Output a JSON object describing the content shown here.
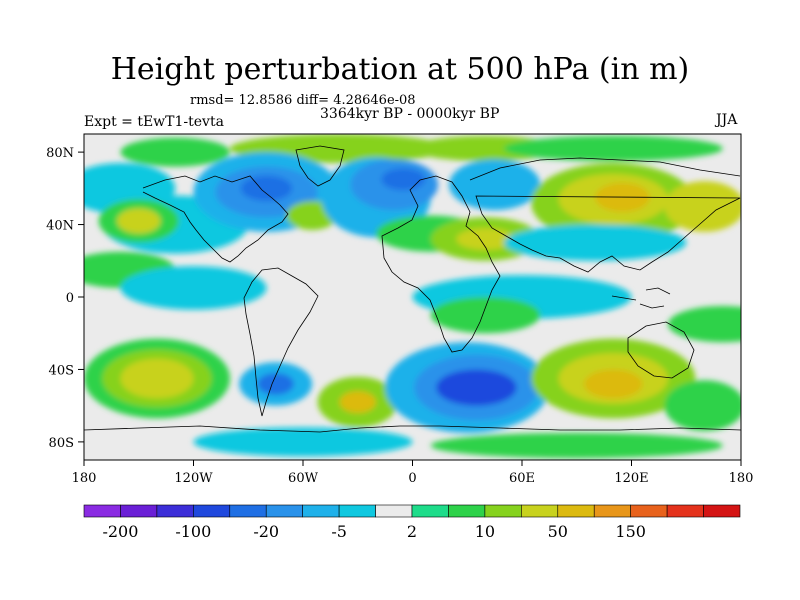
{
  "header": {
    "title": "Height perturbation at 500 hPa (in m)",
    "stats": "rmsd= 12.8586 diff= 4.28646e-08",
    "period": "3364kyr BP - 0000kyr BP",
    "experiment": "Expt = tEwT1-tevta",
    "season": "JJA"
  },
  "axes": {
    "lon_ticks": [
      {
        "value": -180,
        "label": "180"
      },
      {
        "value": -120,
        "label": "120W"
      },
      {
        "value": -60,
        "label": "60W"
      },
      {
        "value": 0,
        "label": "0"
      },
      {
        "value": 60,
        "label": "60E"
      },
      {
        "value": 120,
        "label": "120E"
      },
      {
        "value": 180,
        "label": "180"
      }
    ],
    "lat_ticks": [
      {
        "value": 80,
        "label": "80N"
      },
      {
        "value": 40,
        "label": "40N"
      },
      {
        "value": 0,
        "label": "0"
      },
      {
        "value": -40,
        "label": "40S"
      },
      {
        "value": -80,
        "label": "80S"
      }
    ],
    "lon_range": [
      -180,
      180
    ],
    "lat_range": [
      -90,
      90
    ]
  },
  "colorbar": {
    "colors": [
      "#8a2be2",
      "#6a1fd6",
      "#3c2ed8",
      "#1f48dd",
      "#1f6fe4",
      "#2a92ea",
      "#1fb1ea",
      "#10c8e0",
      "#ebebeb",
      "#1edc8a",
      "#2ed24a",
      "#86d21e",
      "#c8d21e",
      "#dcba10",
      "#e8961a",
      "#e8621c",
      "#e4321c",
      "#d41414"
    ],
    "labels": [
      {
        "text": "-200",
        "boundary": 1
      },
      {
        "text": "-100",
        "boundary": 3
      },
      {
        "text": "-20",
        "boundary": 5
      },
      {
        "text": "-5",
        "boundary": 7
      },
      {
        "text": "2",
        "boundary": 9
      },
      {
        "text": "10",
        "boundary": 11
      },
      {
        "text": "50",
        "boundary": 13
      },
      {
        "text": "150",
        "boundary": 15
      }
    ]
  },
  "field_regions": [
    {
      "lon": -130,
      "lat": 80,
      "rx": 30,
      "ry": 8,
      "level": 10
    },
    {
      "lon": -40,
      "lat": 82,
      "rx": 60,
      "ry": 8,
      "level": 11
    },
    {
      "lon": 40,
      "lat": 82,
      "rx": 40,
      "ry": 7,
      "level": 11
    },
    {
      "lon": 110,
      "lat": 82,
      "rx": 60,
      "ry": 7,
      "level": 10
    },
    {
      "lon": -160,
      "lat": 60,
      "rx": 30,
      "ry": 14,
      "level": 7
    },
    {
      "lon": -130,
      "lat": 40,
      "rx": 40,
      "ry": 16,
      "level": 7
    },
    {
      "lon": -150,
      "lat": 42,
      "rx": 22,
      "ry": 12,
      "level": 10
    },
    {
      "lon": -150,
      "lat": 42,
      "rx": 12,
      "ry": 7,
      "level": 12
    },
    {
      "lon": -80,
      "lat": 58,
      "rx": 40,
      "ry": 22,
      "level": 6
    },
    {
      "lon": -80,
      "lat": 58,
      "rx": 28,
      "ry": 14,
      "level": 5
    },
    {
      "lon": -80,
      "lat": 60,
      "rx": 14,
      "ry": 7,
      "level": 4
    },
    {
      "lon": -55,
      "lat": 45,
      "rx": 14,
      "ry": 8,
      "level": 11
    },
    {
      "lon": -20,
      "lat": 55,
      "rx": 30,
      "ry": 22,
      "level": 6
    },
    {
      "lon": -10,
      "lat": 62,
      "rx": 24,
      "ry": 14,
      "level": 5
    },
    {
      "lon": -5,
      "lat": 65,
      "rx": 12,
      "ry": 6,
      "level": 4
    },
    {
      "lon": 45,
      "lat": 62,
      "rx": 25,
      "ry": 14,
      "level": 6
    },
    {
      "lon": 10,
      "lat": 35,
      "rx": 30,
      "ry": 10,
      "level": 10
    },
    {
      "lon": 40,
      "lat": 32,
      "rx": 30,
      "ry": 12,
      "level": 11
    },
    {
      "lon": 40,
      "lat": 32,
      "rx": 16,
      "ry": 6,
      "level": 12
    },
    {
      "lon": 110,
      "lat": 52,
      "rx": 45,
      "ry": 22,
      "level": 11
    },
    {
      "lon": 110,
      "lat": 54,
      "rx": 30,
      "ry": 14,
      "level": 12
    },
    {
      "lon": 115,
      "lat": 55,
      "rx": 15,
      "ry": 8,
      "level": 13
    },
    {
      "lon": 160,
      "lat": 50,
      "rx": 22,
      "ry": 14,
      "level": 12
    },
    {
      "lon": 100,
      "lat": 30,
      "rx": 50,
      "ry": 10,
      "level": 7
    },
    {
      "lon": -160,
      "lat": 15,
      "rx": 30,
      "ry": 10,
      "level": 10
    },
    {
      "lon": -120,
      "lat": 5,
      "rx": 40,
      "ry": 12,
      "level": 7
    },
    {
      "lon": 60,
      "lat": 0,
      "rx": 60,
      "ry": 12,
      "level": 7
    },
    {
      "lon": 40,
      "lat": -10,
      "rx": 30,
      "ry": 10,
      "level": 10
    },
    {
      "lon": 170,
      "lat": -15,
      "rx": 30,
      "ry": 10,
      "level": 10
    },
    {
      "lon": -140,
      "lat": -45,
      "rx": 40,
      "ry": 22,
      "level": 10
    },
    {
      "lon": -140,
      "lat": -45,
      "rx": 30,
      "ry": 16,
      "level": 11
    },
    {
      "lon": -140,
      "lat": -45,
      "rx": 20,
      "ry": 11,
      "level": 12
    },
    {
      "lon": -75,
      "lat": -48,
      "rx": 20,
      "ry": 12,
      "level": 6
    },
    {
      "lon": -75,
      "lat": -48,
      "rx": 10,
      "ry": 6,
      "level": 4
    },
    {
      "lon": -30,
      "lat": -58,
      "rx": 22,
      "ry": 14,
      "level": 11
    },
    {
      "lon": -30,
      "lat": -58,
      "rx": 10,
      "ry": 6,
      "level": 13
    },
    {
      "lon": 30,
      "lat": -50,
      "rx": 45,
      "ry": 25,
      "level": 6
    },
    {
      "lon": 35,
      "lat": -50,
      "rx": 34,
      "ry": 18,
      "level": 5
    },
    {
      "lon": 35,
      "lat": -50,
      "rx": 22,
      "ry": 10,
      "level": 3
    },
    {
      "lon": 110,
      "lat": -45,
      "rx": 45,
      "ry": 22,
      "level": 11
    },
    {
      "lon": 110,
      "lat": -45,
      "rx": 30,
      "ry": 14,
      "level": 12
    },
    {
      "lon": 110,
      "lat": -48,
      "rx": 16,
      "ry": 8,
      "level": 13
    },
    {
      "lon": 160,
      "lat": -60,
      "rx": 22,
      "ry": 14,
      "level": 10
    },
    {
      "lon": -60,
      "lat": -80,
      "rx": 60,
      "ry": 8,
      "level": 7
    },
    {
      "lon": 90,
      "lat": -82,
      "rx": 80,
      "ry": 7,
      "level": 10
    }
  ]
}
